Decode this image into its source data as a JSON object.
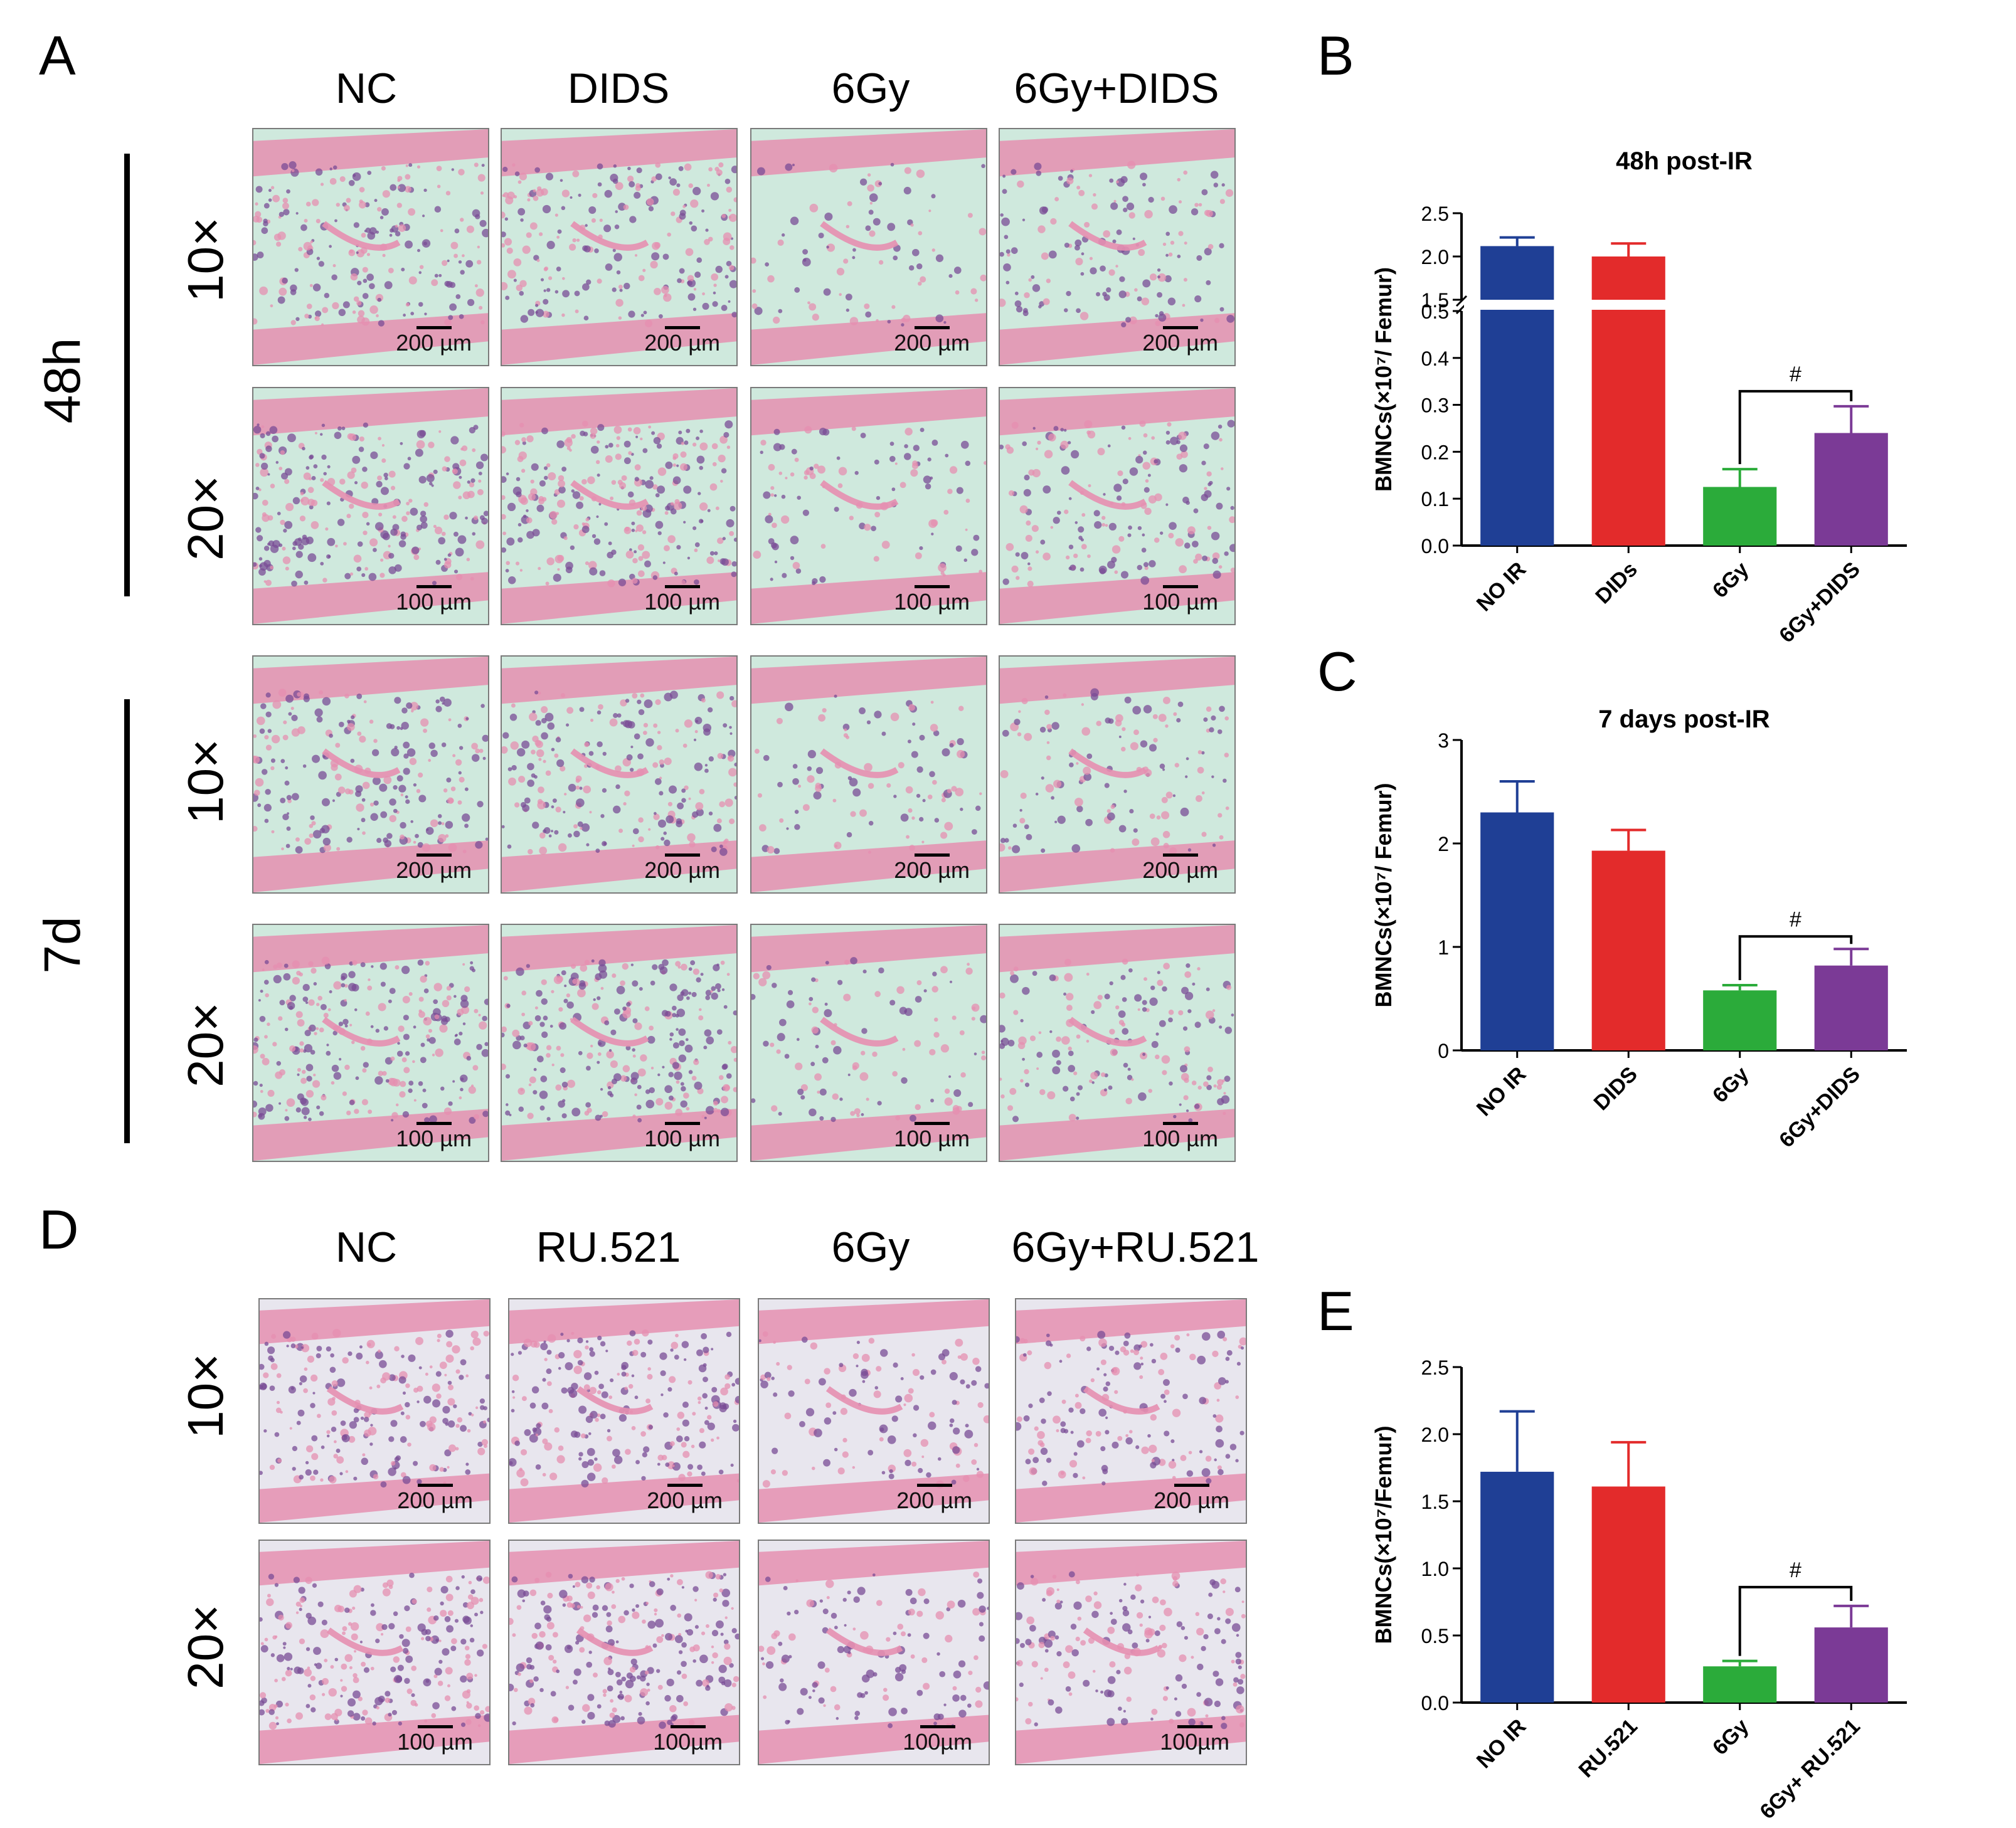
{
  "panels": {
    "A": "A",
    "B": "B",
    "C": "C",
    "D": "D",
    "E": "E"
  },
  "panelA": {
    "columns": [
      "NC",
      "DIDS",
      "6Gy",
      "6Gy+DIDS"
    ],
    "time_labels": [
      "48h",
      "7d"
    ],
    "mag_labels": [
      "10×",
      "20×",
      "10×",
      "20×"
    ],
    "scale_labels": [
      [
        "200 µm",
        "200 µm",
        "200 µm",
        "200 µm"
      ],
      [
        "100 µm",
        "100 µm",
        "100 µm",
        "100 µm"
      ],
      [
        "200 µm",
        "200 µm",
        "200 µm",
        "200 µm"
      ],
      [
        "100 µm",
        "100 µm",
        "100 µm",
        "100 µm"
      ]
    ]
  },
  "panelD": {
    "columns": [
      "NC",
      "RU.521",
      "6Gy",
      "6Gy+RU.521"
    ],
    "mag_labels": [
      "10×",
      "20×"
    ],
    "scale_labels": [
      [
        "200 µm",
        "200 µm",
        "200 µm",
        "200 µm"
      ],
      [
        "100 µm",
        "100µm",
        "100µm",
        "100µm"
      ]
    ]
  },
  "colors": {
    "blue": "#1f3f95",
    "red": "#e32b2b",
    "green": "#2bab3a",
    "purple": "#7b3a96",
    "tissue_bg": "#cfe9dd",
    "tissue_pink": "#e58fb0",
    "tissue_purple": "#7a4c95"
  },
  "chart_data": [
    {
      "id": "B",
      "type": "bar",
      "title": "48h post-IR",
      "ylabel": "BMNCs(×10⁷/ Femur)",
      "categories": [
        "NO IR",
        "DIDs",
        "6Gy",
        "6Gy+DIDS"
      ],
      "values": [
        2.12,
        2.0,
        0.125,
        0.24
      ],
      "errors": [
        0.1,
        0.15,
        0.038,
        0.057
      ],
      "colors": [
        "#1f3f95",
        "#e32b2b",
        "#2bab3a",
        "#7b3a96"
      ],
      "broken_axis": true,
      "ylim_lower": [
        0,
        0.5
      ],
      "ylim_upper": [
        1.5,
        2.5
      ],
      "yticks_lower": [
        "0.0",
        "0.1",
        "0.2",
        "0.3",
        "0.4",
        "0.5"
      ],
      "yticks_upper": [
        "1.5",
        "2.0",
        "2.5"
      ],
      "significance": {
        "from": 2,
        "to": 3,
        "label": "#"
      }
    },
    {
      "id": "C",
      "type": "bar",
      "title": "7 days post-IR",
      "ylabel": "BMNCs(×10⁷/ Femur)",
      "categories": [
        "NO IR",
        "DIDS",
        "6Gy",
        "6Gy+DIDS"
      ],
      "values": [
        2.3,
        1.93,
        0.58,
        0.82
      ],
      "errors": [
        0.3,
        0.2,
        0.05,
        0.16
      ],
      "colors": [
        "#1f3f95",
        "#e32b2b",
        "#2bab3a",
        "#7b3a96"
      ],
      "ylim": [
        0,
        3
      ],
      "yticks": [
        "0",
        "1",
        "2",
        "3"
      ],
      "significance": {
        "from": 2,
        "to": 3,
        "label": "#"
      }
    },
    {
      "id": "E",
      "type": "bar",
      "title": "",
      "ylabel": "BMNCs(×10⁷/Femur)",
      "categories": [
        "NO IR",
        "RU.521",
        "6Gy",
        "6Gy+ RU.521"
      ],
      "values": [
        1.72,
        1.61,
        0.27,
        0.56
      ],
      "errors": [
        0.45,
        0.33,
        0.04,
        0.16
      ],
      "colors": [
        "#1f3f95",
        "#e32b2b",
        "#2bab3a",
        "#7b3a96"
      ],
      "ylim": [
        0,
        2.5
      ],
      "yticks": [
        "0.0",
        "0.5",
        "1.0",
        "1.5",
        "2.0",
        "2.5"
      ],
      "significance": {
        "from": 2,
        "to": 3,
        "label": "#"
      }
    }
  ]
}
